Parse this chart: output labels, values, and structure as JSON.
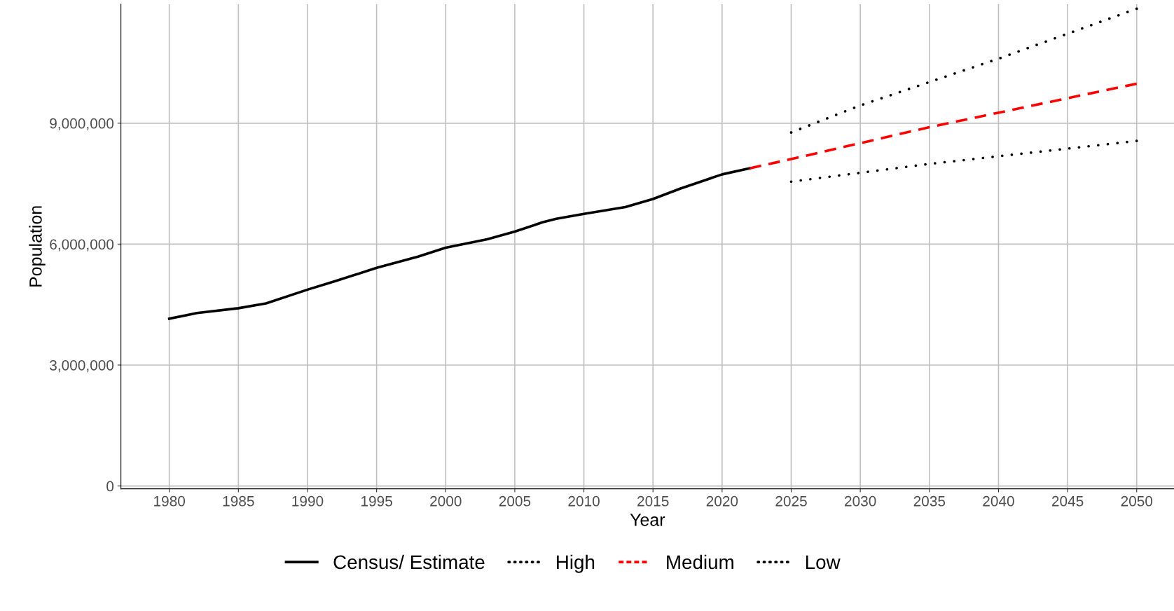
{
  "chart_data": {
    "type": "line",
    "xlabel": "Year",
    "ylabel": "Population",
    "xlim": [
      1976.5,
      2052.7
    ],
    "ylim": [
      -70000,
      11950000
    ],
    "xticks": [
      1980,
      1985,
      1990,
      1995,
      2000,
      2005,
      2010,
      2015,
      2020,
      2025,
      2030,
      2035,
      2040,
      2045,
      2050
    ],
    "yticks": [
      {
        "value": 0,
        "label": "0"
      },
      {
        "value": 3000000,
        "label": "3,000,000"
      },
      {
        "value": 6000000,
        "label": "6,000,000"
      },
      {
        "value": 9000000,
        "label": "9,000,000"
      }
    ],
    "grid": true,
    "legend": "bottom",
    "series": [
      {
        "name": "Census/ Estimate",
        "color": "#000000",
        "line_style": "solid",
        "x": [
          1980,
          1982,
          1985,
          1987,
          1990,
          1992,
          1995,
          1998,
          2000,
          2003,
          2005,
          2007,
          2008,
          2010,
          2013,
          2015,
          2017,
          2020,
          2022
        ],
        "values": [
          4150000,
          4290000,
          4410000,
          4530000,
          4870000,
          5080000,
          5410000,
          5690000,
          5910000,
          6120000,
          6310000,
          6540000,
          6630000,
          6750000,
          6920000,
          7120000,
          7380000,
          7730000,
          7880000
        ]
      },
      {
        "name": "High",
        "color": "#000000",
        "line_style": "dotted",
        "x": [
          2025,
          2030,
          2040,
          2050
        ],
        "values": [
          8770000,
          9440000,
          10600000,
          11840000
        ]
      },
      {
        "name": "Medium",
        "color": "#ff0000",
        "line_style": "dashed",
        "x": [
          2022,
          2025,
          2035,
          2050
        ],
        "values": [
          7880000,
          8110000,
          8900000,
          9980000
        ]
      },
      {
        "name": "Low",
        "color": "#000000",
        "line_style": "dotted",
        "x": [
          2025,
          2035,
          2050
        ],
        "values": [
          7550000,
          7990000,
          8560000
        ]
      }
    ]
  }
}
